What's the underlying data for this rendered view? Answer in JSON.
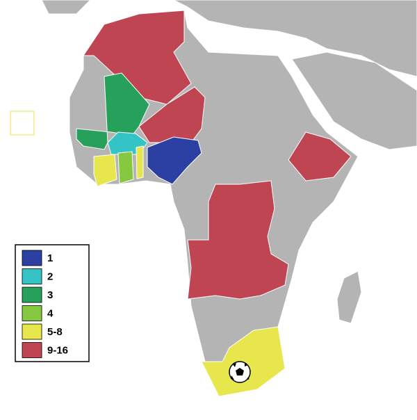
{
  "legend": {
    "entries": [
      {
        "label": "1",
        "color": "#2c3fa3"
      },
      {
        "label": "2",
        "color": "#35c4c6"
      },
      {
        "label": "3",
        "color": "#27a05c"
      },
      {
        "label": "4",
        "color": "#86c940"
      },
      {
        "label": "5-8",
        "color": "#e8e64d"
      },
      {
        "label": "9-16",
        "color": "#bf4553"
      }
    ]
  }
}
